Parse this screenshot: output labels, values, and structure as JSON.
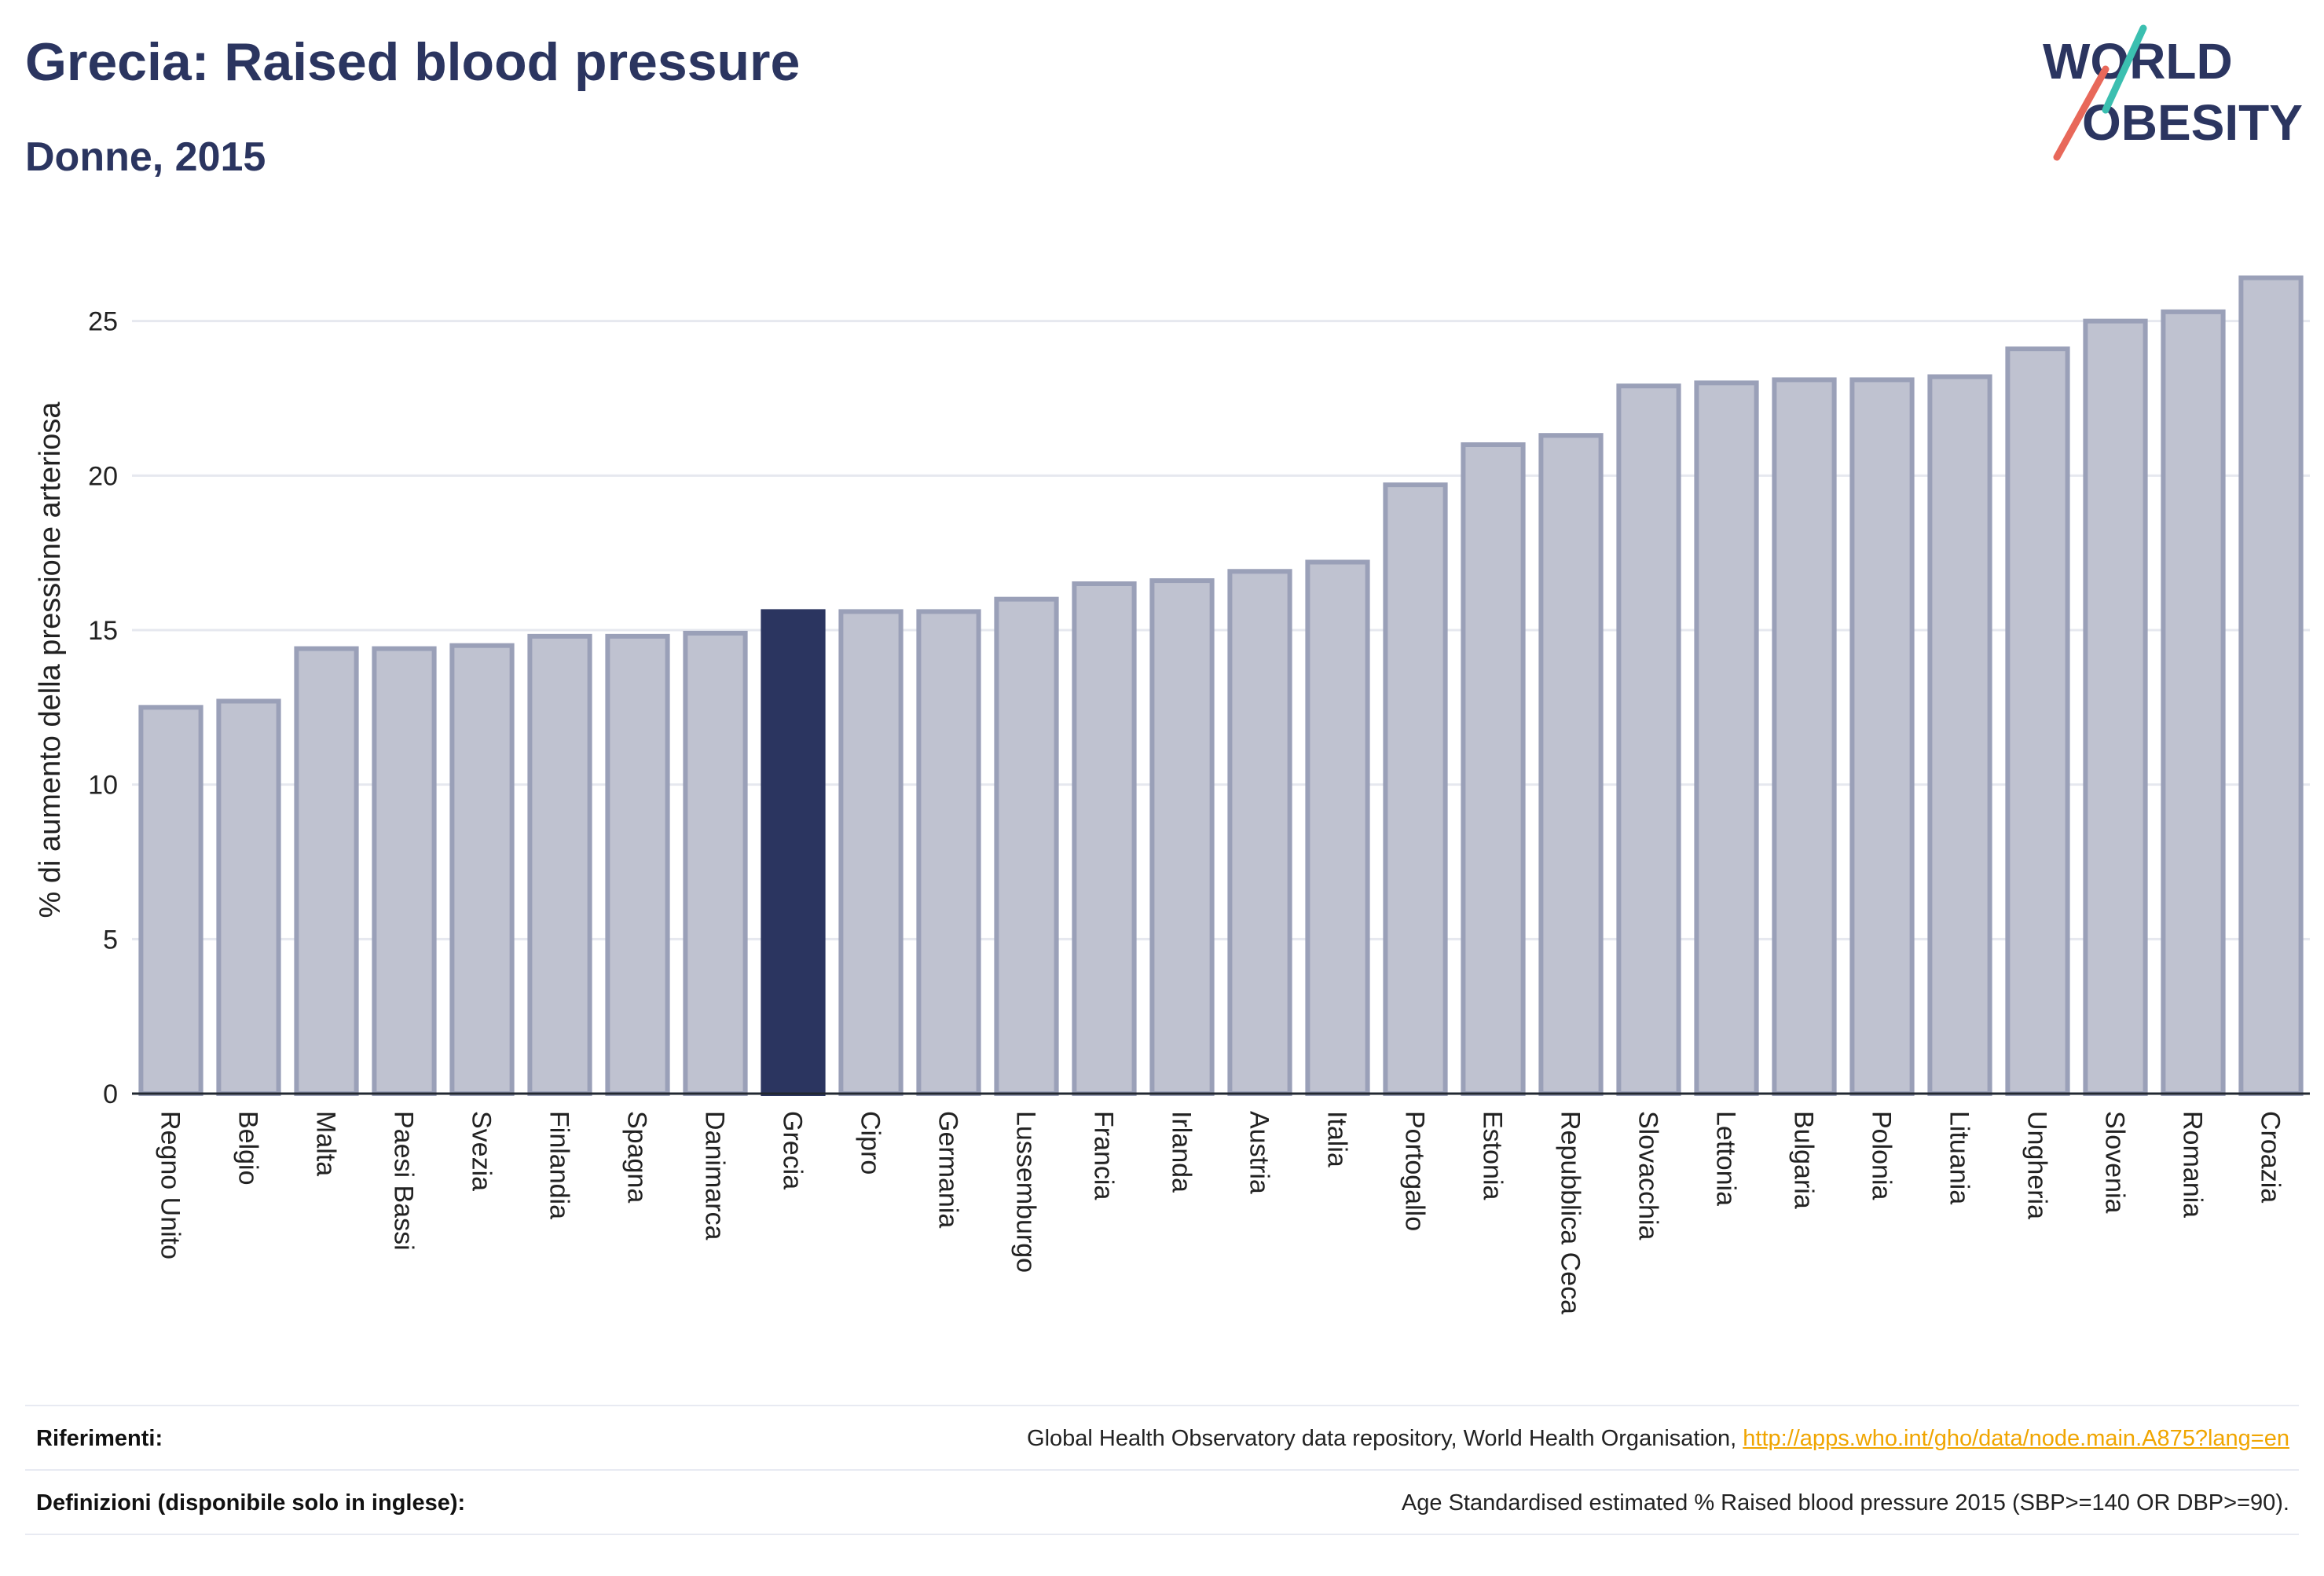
{
  "header": {
    "title": "Grecia: Raised blood pressure",
    "subtitle": "Donne, 2015"
  },
  "logo": {
    "line1": "WORLD",
    "line2": "OBESITY"
  },
  "colors": {
    "highlight": "#2b3560",
    "bar_fill": "#bfc2d0",
    "bar_stroke": "#9aa0b8",
    "title": "#2b3560",
    "logo_teal": "#3bbfb0",
    "logo_red": "#e8685a",
    "link": "#f0a500"
  },
  "chart_data": {
    "type": "bar",
    "ylabel": "% di aumento della pressione arteriosa",
    "xlabel": "",
    "ylim": [
      0,
      27
    ],
    "yticks": [
      0,
      5,
      10,
      15,
      20,
      25
    ],
    "grid": true,
    "highlight": "Grecia",
    "categories": [
      "Regno Unito",
      "Belgio",
      "Malta",
      "Paesi Bassi",
      "Svezia",
      "Finlandia",
      "Spagna",
      "Danimarca",
      "Grecia",
      "Cipro",
      "Germania",
      "Lussemburgo",
      "Francia",
      "Irlanda",
      "Austria",
      "Italia",
      "Portogallo",
      "Estonia",
      "Repubblica Ceca",
      "Slovacchia",
      "Lettonia",
      "Bulgaria",
      "Polonia",
      "Lituania",
      "Ungheria",
      "Slovenia",
      "Romania",
      "Croazia"
    ],
    "values": [
      12.5,
      12.7,
      14.4,
      14.4,
      14.5,
      14.8,
      14.8,
      14.9,
      15.6,
      15.6,
      15.6,
      16.0,
      16.5,
      16.6,
      16.9,
      17.2,
      19.7,
      21.0,
      21.3,
      22.9,
      23.0,
      23.1,
      23.1,
      23.2,
      24.1,
      25.0,
      25.3,
      26.4
    ]
  },
  "footer": {
    "references_label": "Riferimenti:",
    "references_text": "Global Health Observatory data repository, World Health Organisation, ",
    "references_link": "http://apps.who.int/gho/data/node.main.A875?lang=en",
    "definitions_label": "Definizioni (disponibile solo in inglese):",
    "definitions_text": "Age Standardised estimated % Raised blood pressure 2015 (SBP>=140 OR DBP>=90)."
  }
}
